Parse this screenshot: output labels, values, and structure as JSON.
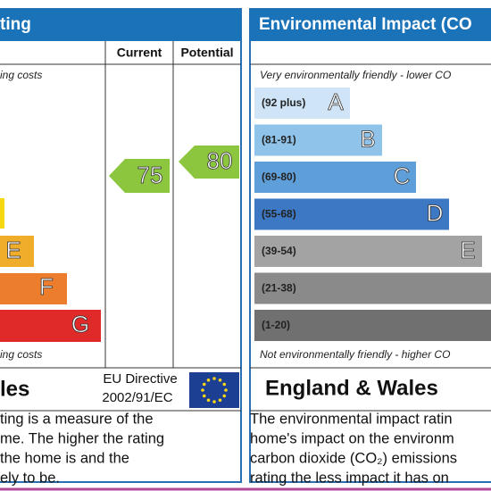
{
  "left": {
    "title": "ting",
    "columns": [
      "Current",
      "Potential"
    ],
    "top_note": "ing costs",
    "bottom_note": "ing costs",
    "bands": [
      "E",
      "F",
      "G"
    ],
    "current": "75",
    "potential": "80",
    "region": "les",
    "directive": [
      "EU Directive",
      "2002/91/EC"
    ],
    "paragraph": [
      "ting is a measure of the",
      "me. The higher the rating",
      "the home is and the",
      "ely to be."
    ]
  },
  "right": {
    "title": "Environmental Impact (CO",
    "top_note": "Very environmentally friendly - lower CO",
    "bottom_note": "Not environmentally friendly - higher CO",
    "bands": [
      {
        "range": "(92 plus)",
        "letter": "A"
      },
      {
        "range": "(81-91)",
        "letter": "B"
      },
      {
        "range": "(69-80)",
        "letter": "C"
      },
      {
        "range": "(55-68)",
        "letter": "D"
      },
      {
        "range": "(39-54)",
        "letter": "E"
      },
      {
        "range": "(21-38)"
      },
      {
        "range": "(1-20)"
      }
    ],
    "region": "England & Wales",
    "paragraph": [
      "The environmental impact ratin",
      "home's impact on the environm",
      "carbon dioxide (CO₂) emissions",
      "rating the less impact it has on"
    ]
  }
}
